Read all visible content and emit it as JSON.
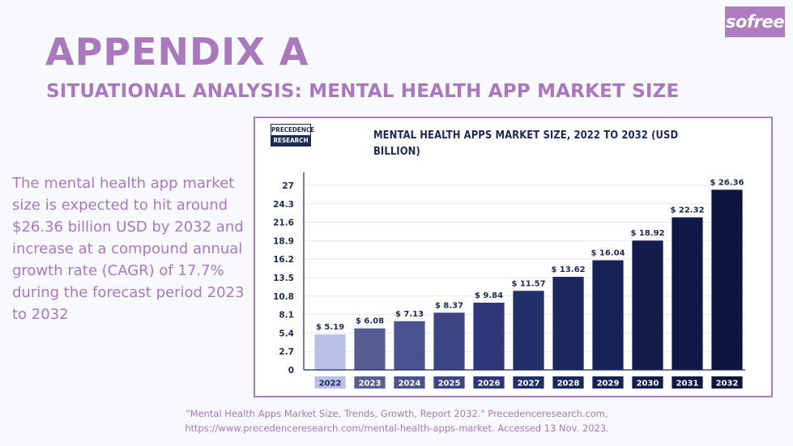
{
  "brand": {
    "logo_text": "sofree"
  },
  "header": {
    "title": "APPENDIX A",
    "subtitle": "SITUATIONAL ANALYSIS: MENTAL HEALTH APP MARKET SIZE"
  },
  "summary_text": "The mental health app market size is expected to hit around $26.36 billion USD by 2032 and increase at a compound annual growth rate (CAGR) of 17.7% during the forecast period 2023 to 2032",
  "source_logo": {
    "line1": "PRECEDENCE",
    "line2": "RESEARCH"
  },
  "citation": {
    "line1": "\"Mental Health Apps Market Size, Trends, Growth, Report 2032.\" Precedenceresearch.com,",
    "line2": "https://www.precedenceresearch.com/mental-health-apps-market. Accessed 13 Nov. 2023."
  },
  "colors": {
    "accent": "#a978bd",
    "navy": "#1c2a54",
    "bar_colors": [
      "#b9c0e4",
      "#565e93",
      "#4a5390",
      "#3d4585",
      "#2f3779",
      "#22306a",
      "#1b2860",
      "#172256",
      "#131c4c",
      "#101845",
      "#0d143d"
    ]
  },
  "chart_data": {
    "type": "bar",
    "title": "MENTAL HEALTH APPS MARKET SIZE, 2022 TO 2032 (USD BILLION)",
    "categories": [
      "2022",
      "2023",
      "2024",
      "2025",
      "2026",
      "2027",
      "2028",
      "2029",
      "2030",
      "2031",
      "2032"
    ],
    "values": [
      5.19,
      6.08,
      7.13,
      8.37,
      9.84,
      11.57,
      13.62,
      16.04,
      18.92,
      22.32,
      26.36
    ],
    "value_labels": [
      "$ 5.19",
      "$ 6.08",
      "$ 7.13",
      "$ 8.37",
      "$ 9.84",
      "$ 11.57",
      "$ 13.62",
      "$ 16.04",
      "$ 18.92",
      "$ 22.32",
      "$ 26.36"
    ],
    "y_ticks": [
      "0",
      "2.7",
      "5.4",
      "8.1",
      "10.8",
      "13.5",
      "16.2",
      "18.9",
      "21.6",
      "24.3",
      "27"
    ],
    "ylim": [
      0,
      27
    ],
    "xlabel": "",
    "ylabel": "",
    "grid": true,
    "legend": "none"
  }
}
